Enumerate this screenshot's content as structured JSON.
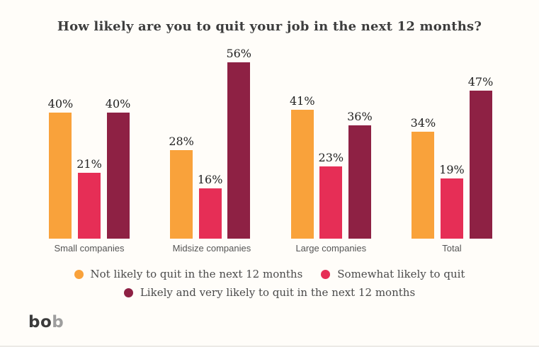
{
  "page": {
    "background": "#FFFDF9"
  },
  "title": "How likely are you to quit your job in the next 12 months?",
  "chart_data": {
    "type": "bar",
    "title": "How likely are you to quit your job in the next 12 months?",
    "categories": [
      "Small companies",
      "Midsize companies",
      "Large companies",
      "Total"
    ],
    "series": [
      {
        "name": "Not likely to quit in the next 12 months",
        "color": "#F9A23B",
        "values": [
          40,
          28,
          41,
          34
        ]
      },
      {
        "name": "Somewhat likely to quit",
        "color": "#E62E56",
        "values": [
          21,
          16,
          23,
          19
        ]
      },
      {
        "name": "Likely and very likely to quit in the next 12 months",
        "color": "#8E2144",
        "values": [
          40,
          56,
          36,
          47
        ]
      }
    ],
    "value_suffix": "%",
    "ylim": [
      0,
      60
    ],
    "grid": false,
    "axes_visible": false,
    "legend_position": "bottom",
    "legend_rows": [
      [
        0,
        1
      ],
      [
        2
      ]
    ]
  },
  "logo": {
    "text_dark": "bo",
    "text_light": "b"
  }
}
